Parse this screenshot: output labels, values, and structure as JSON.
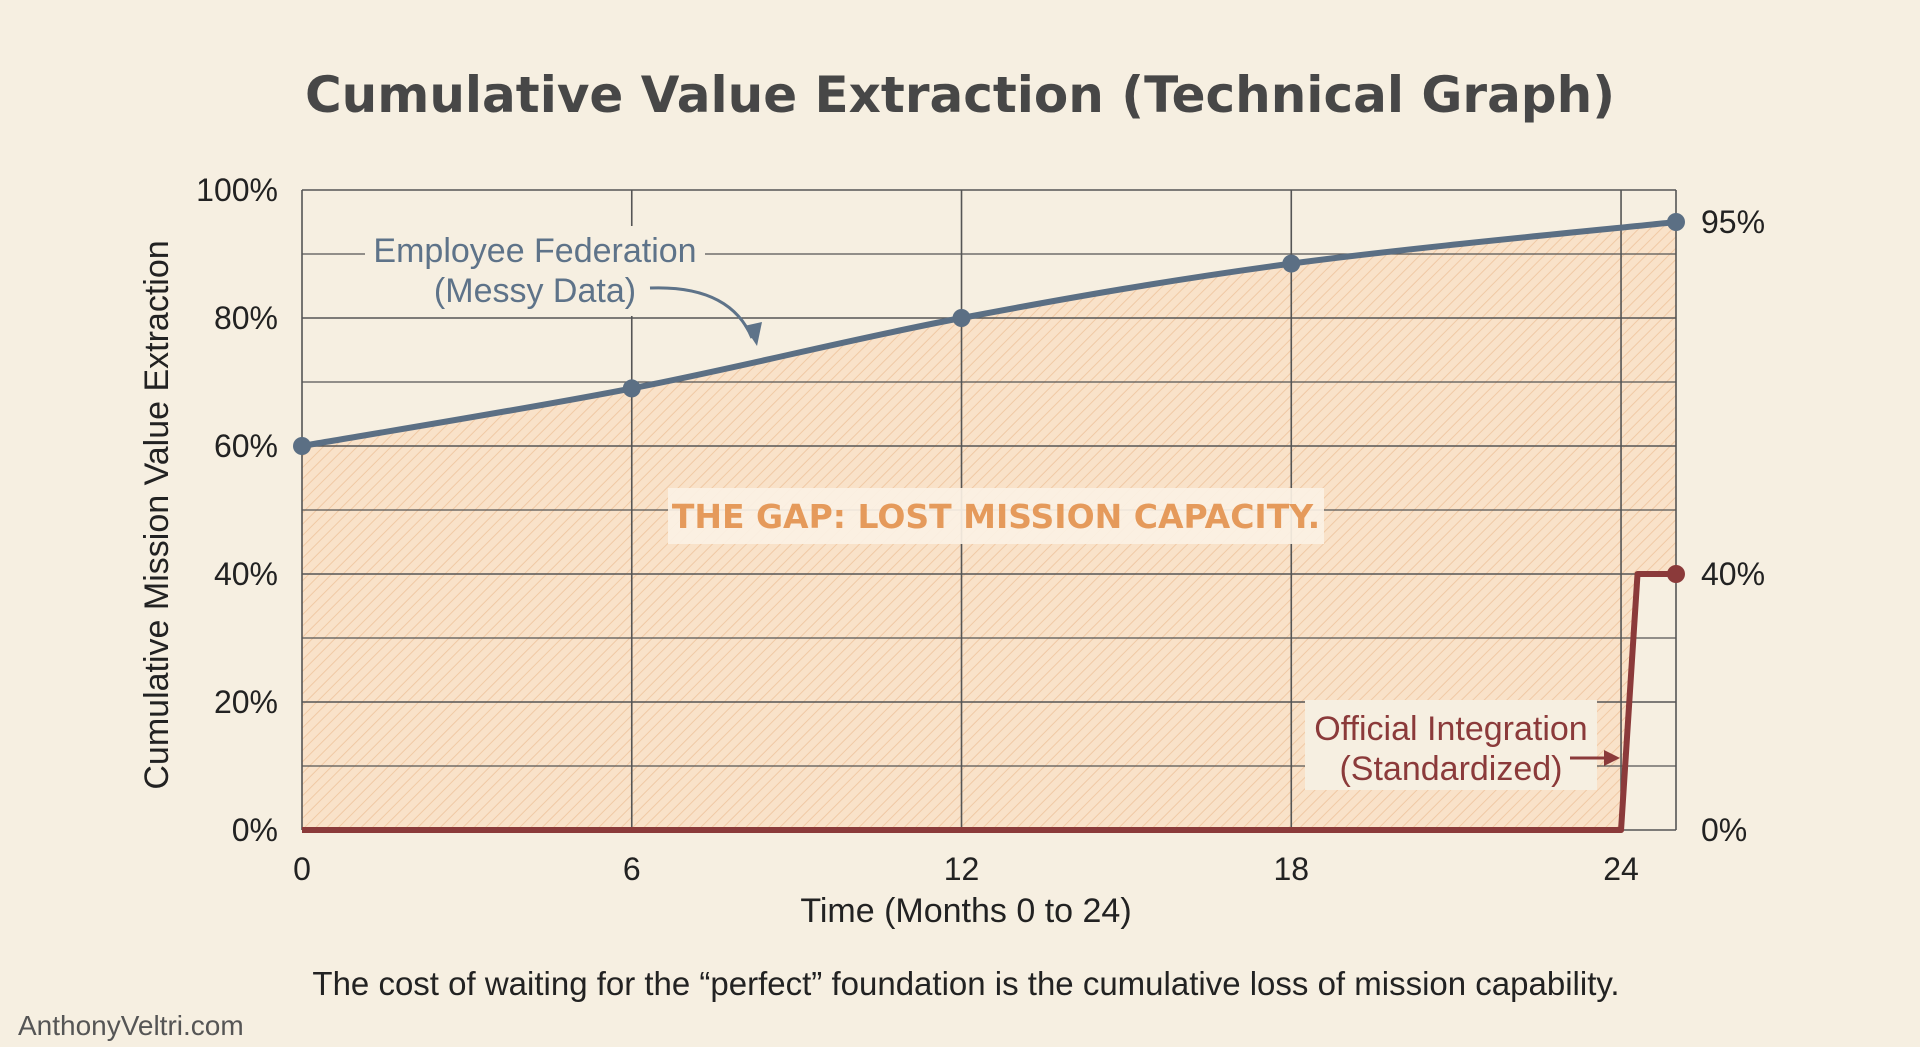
{
  "chart_data": {
    "type": "line",
    "title": "Cumulative Value Extraction (Technical Graph)",
    "xlabel": "Time (Months 0 to 24)",
    "ylabel": "Cumulative Mission Value Extraction",
    "xlim": [
      0,
      25
    ],
    "ylim": [
      0,
      100
    ],
    "x_ticks": [
      0,
      6,
      12,
      18,
      24
    ],
    "y_ticks": [
      0,
      20,
      40,
      60,
      80,
      100
    ],
    "y_tick_labels": [
      "0%",
      "20%",
      "40%",
      "60%",
      "80%",
      "100%"
    ],
    "grid": true,
    "series": [
      {
        "name": "Employee Federation (Messy Data)",
        "label_lines": [
          "Employee Federation",
          "(Messy Data)"
        ],
        "color": "#5b6f84",
        "x": [
          0,
          6,
          12,
          18,
          25
        ],
        "values": [
          60,
          69,
          80,
          88.5,
          95
        ],
        "end_label": "95%"
      },
      {
        "name": "Official Integration (Standardized)",
        "label_lines": [
          "Official Integration",
          "(Standardized)"
        ],
        "color": "#8b3a3a",
        "x": [
          0,
          24,
          24.3,
          25
        ],
        "values": [
          0,
          0,
          40,
          40
        ],
        "end_label": "40%",
        "start_label": "0%"
      }
    ],
    "annotations": {
      "gap": "THE GAP: LOST MISSION CAPACITY."
    },
    "caption": "The cost of waiting for the “perfect” foundation is the cumulative loss of mission capability.",
    "gap_fill_color": "#f8d9bb"
  },
  "watermark": "AnthonyVeltri.com"
}
